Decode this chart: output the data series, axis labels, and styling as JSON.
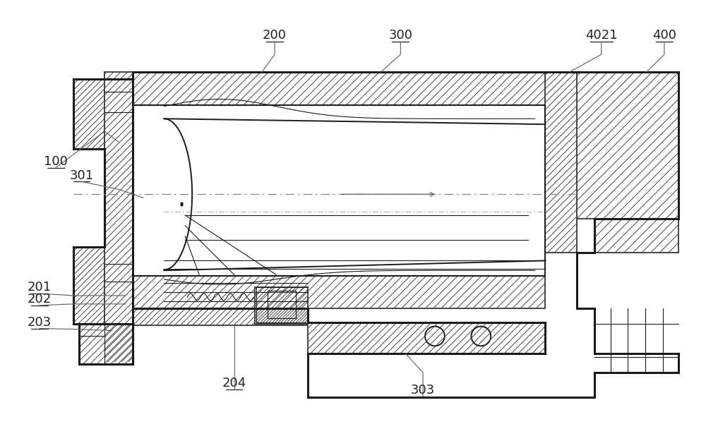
{
  "bg_color": "#ffffff",
  "line_color": "#1a1a1a",
  "hatch_color": "#444444",
  "label_color": "#222222",
  "fig_width": 10.0,
  "fig_height": 6.08
}
